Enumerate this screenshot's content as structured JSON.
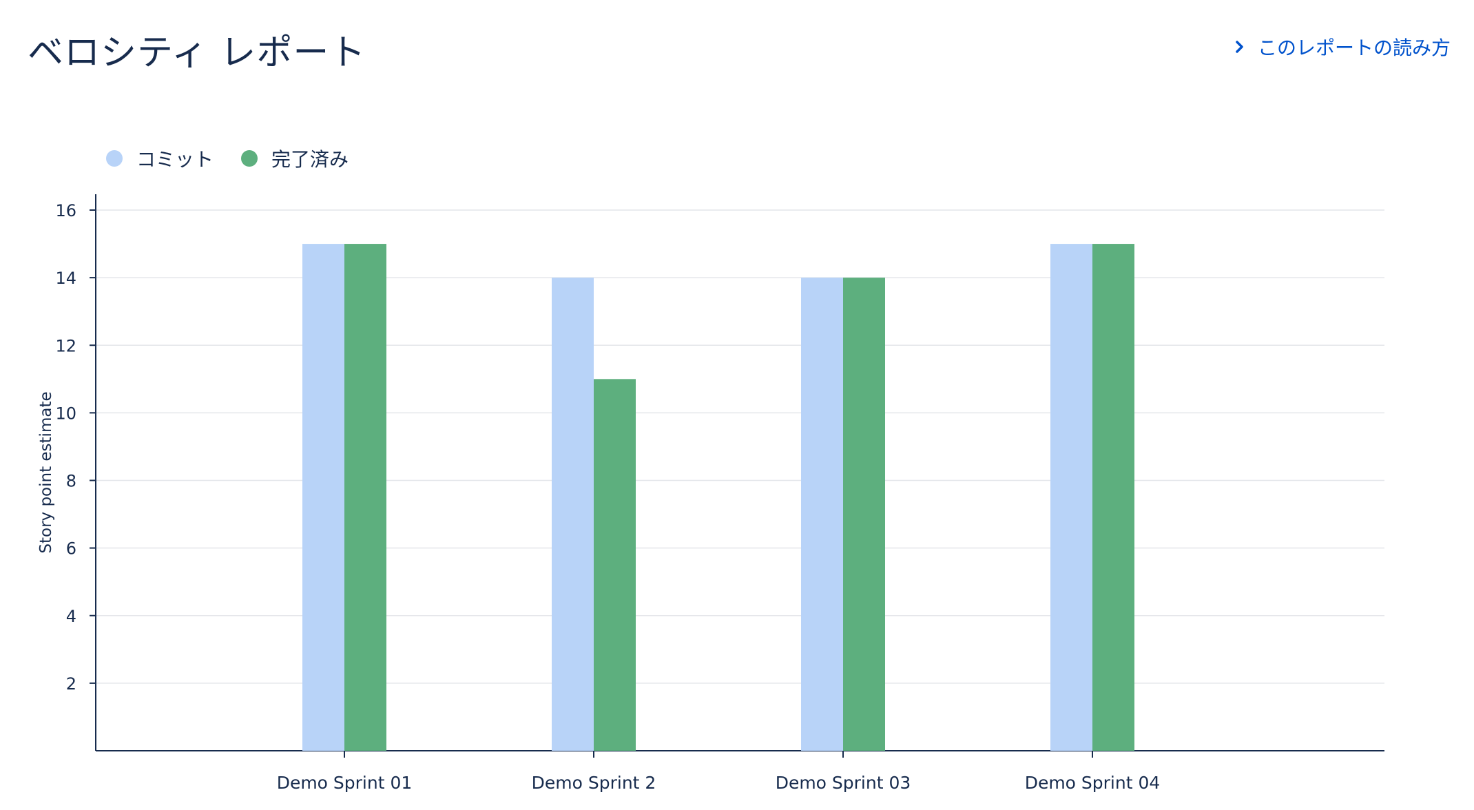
{
  "header": {
    "title": "ベロシティ レポート",
    "help_link": "このレポートの読み方"
  },
  "legend": [
    {
      "label": "コミット",
      "color": "#b8d3f8"
    },
    {
      "label": "完了済み",
      "color": "#5daf7e"
    }
  ],
  "chart_data": {
    "type": "bar",
    "categories": [
      "Demo Sprint 01",
      "Demo Sprint 2",
      "Demo Sprint 03",
      "Demo Sprint 04"
    ],
    "series": [
      {
        "name": "コミット",
        "color": "#b8d3f8",
        "values": [
          15,
          14,
          14,
          15
        ]
      },
      {
        "name": "完了済み",
        "color": "#5daf7e",
        "values": [
          15,
          11,
          14,
          15
        ]
      }
    ],
    "xlabel": "",
    "ylabel": "Story point estimate",
    "ylim": [
      0,
      16
    ],
    "yticks": [
      2,
      4,
      6,
      8,
      10,
      12,
      14,
      16
    ],
    "grid": true,
    "legend_position": "top-left"
  }
}
